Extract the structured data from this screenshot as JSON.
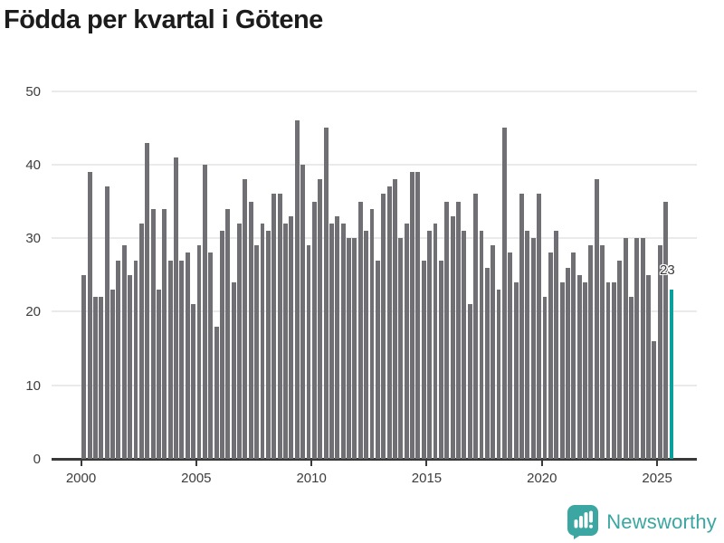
{
  "title": "Födda per kvartal i Götene",
  "chart_data": {
    "type": "bar",
    "title": "Födda per kvartal i Götene",
    "frequency": "quarterly",
    "start_period": "2000 Q1",
    "end_period": "2025 Q3",
    "values": [
      25,
      39,
      22,
      22,
      37,
      23,
      27,
      29,
      25,
      27,
      32,
      43,
      34,
      23,
      34,
      27,
      41,
      27,
      28,
      21,
      29,
      40,
      28,
      18,
      31,
      34,
      24,
      32,
      38,
      35,
      29,
      32,
      31,
      36,
      36,
      32,
      33,
      46,
      40,
      29,
      35,
      38,
      45,
      32,
      33,
      32,
      30,
      30,
      35,
      31,
      34,
      27,
      36,
      37,
      38,
      30,
      32,
      39,
      39,
      27,
      31,
      32,
      27,
      35,
      33,
      35,
      31,
      21,
      36,
      31,
      26,
      29,
      23,
      45,
      28,
      24,
      36,
      31,
      30,
      36,
      22,
      28,
      31,
      24,
      26,
      28,
      25,
      24,
      29,
      38,
      29,
      24,
      24,
      27,
      30,
      22,
      30,
      30,
      25,
      16,
      29,
      35,
      23
    ],
    "highlight": {
      "index": 102,
      "period": "2025 Q3",
      "value": 23,
      "label": "23"
    },
    "xlabel": "",
    "ylabel": "",
    "ylim": [
      0,
      50
    ],
    "grid": true,
    "legend": "none",
    "y_tick_labels": [
      "0",
      "10",
      "20",
      "30",
      "40",
      "50"
    ],
    "x_tick_labels": [
      "2000",
      "2005",
      "2010",
      "2015",
      "2020",
      "2025"
    ]
  },
  "colors": {
    "bar": "#706F74",
    "highlight_bar": "#0AA09B",
    "gridline": "#eaeaea",
    "axis_line": "#3a3a3a",
    "tick_text": "#3d3d3d",
    "title_text": "#1c1c1c",
    "brand_teal": "#3BA6A2"
  },
  "footer": {
    "brand": "Newsworthy"
  }
}
